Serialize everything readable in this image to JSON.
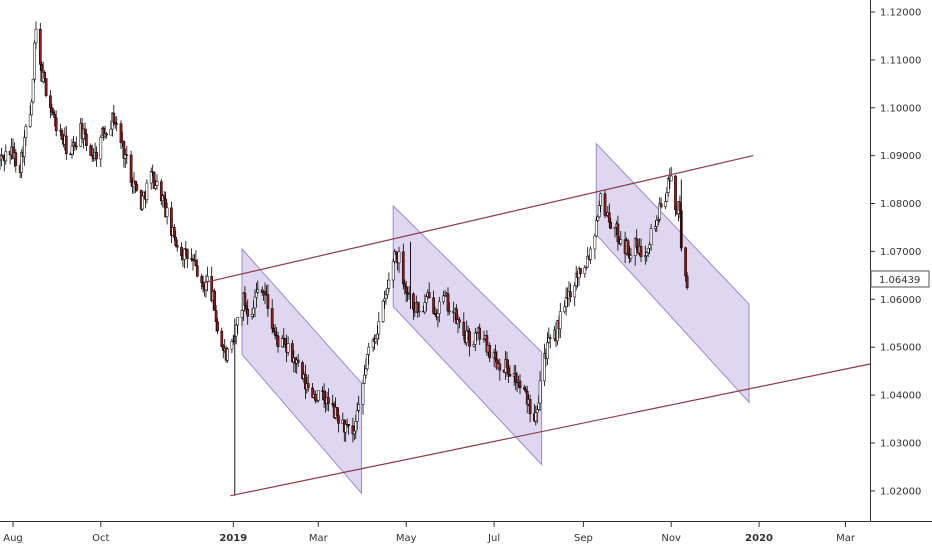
{
  "chart_data": {
    "type": "candlestick",
    "title": "",
    "xlabel": "",
    "ylabel": "",
    "ylim": [
      1.0135,
      1.1225
    ],
    "x_range": [
      "2018-07-23",
      "2020-03-18"
    ],
    "y_ticks": [
      "1.12000",
      "1.11000",
      "1.10000",
      "1.09000",
      "1.08000",
      "1.07000",
      "1.06000",
      "1.05000",
      "1.04000",
      "1.03000",
      "1.02000"
    ],
    "x_ticks": [
      {
        "label": "Aug",
        "date": "2018-08-01",
        "bold": false
      },
      {
        "label": "Oct",
        "date": "2018-10-01",
        "bold": false
      },
      {
        "label": "2019",
        "date": "2019-01-01",
        "bold": true
      },
      {
        "label": "Mar",
        "date": "2019-03-01",
        "bold": false
      },
      {
        "label": "May",
        "date": "2019-05-01",
        "bold": false
      },
      {
        "label": "Jul",
        "date": "2019-07-01",
        "bold": false
      },
      {
        "label": "Sep",
        "date": "2019-09-01",
        "bold": false
      },
      {
        "label": "Nov",
        "date": "2019-11-01",
        "bold": false
      },
      {
        "label": "2020",
        "date": "2020-01-01",
        "bold": true
      },
      {
        "label": "Mar",
        "date": "2020-03-01",
        "bold": false
      }
    ],
    "current_price": {
      "label": "1.06439",
      "value": 1.06439
    },
    "grid": false,
    "colors": {
      "up_candle": "#ffffff",
      "down_candle": "#8b1a1a",
      "wick": "#000000",
      "trendline": "#8b3a4a",
      "channel_fill": "#d8d0ec",
      "channel_stroke": "#9a8ccc"
    },
    "path": [
      [
        "2018-07-23",
        1.089
      ],
      [
        "2018-07-30",
        1.091
      ],
      [
        "2018-08-06",
        1.088
      ],
      [
        "2018-08-10",
        1.095
      ],
      [
        "2018-08-14",
        1.1
      ],
      [
        "2018-08-16",
        1.112
      ],
      [
        "2018-08-17",
        1.116
      ],
      [
        "2018-08-20",
        1.108
      ],
      [
        "2018-08-24",
        1.104
      ],
      [
        "2018-08-30",
        1.097
      ],
      [
        "2018-09-05",
        1.093
      ],
      [
        "2018-09-10",
        1.09
      ],
      [
        "2018-09-17",
        1.096
      ],
      [
        "2018-09-21",
        1.092
      ],
      [
        "2018-09-27",
        1.09
      ],
      [
        "2018-10-03",
        1.095
      ],
      [
        "2018-10-10",
        1.098
      ],
      [
        "2018-10-16",
        1.092
      ],
      [
        "2018-10-22",
        1.086
      ],
      [
        "2018-10-29",
        1.08
      ],
      [
        "2018-11-05",
        1.086
      ],
      [
        "2018-11-12",
        1.082
      ],
      [
        "2018-11-19",
        1.074
      ],
      [
        "2018-11-26",
        1.07
      ],
      [
        "2018-12-03",
        1.068
      ],
      [
        "2018-12-07",
        1.066
      ],
      [
        "2018-12-10",
        1.062
      ],
      [
        "2018-12-14",
        1.064
      ],
      [
        "2018-12-18",
        1.06
      ],
      [
        "2018-12-22",
        1.052
      ],
      [
        "2018-12-27",
        1.048
      ],
      [
        "2019-01-01",
        1.05
      ],
      [
        "2019-01-04",
        1.056
      ],
      [
        "2019-01-08",
        1.06
      ],
      [
        "2019-01-12",
        1.057
      ],
      [
        "2019-01-16",
        1.06
      ],
      [
        "2019-01-20",
        1.064
      ],
      [
        "2019-01-24",
        1.06
      ],
      [
        "2019-01-30",
        1.052
      ],
      [
        "2019-02-06",
        1.05
      ],
      [
        "2019-02-13",
        1.047
      ],
      [
        "2019-02-20",
        1.042
      ],
      [
        "2019-02-27",
        1.04
      ],
      [
        "2019-03-06",
        1.039
      ],
      [
        "2019-03-13",
        1.036
      ],
      [
        "2019-03-20",
        1.033
      ],
      [
        "2019-03-25",
        1.031
      ],
      [
        "2019-03-30",
        1.038
      ],
      [
        "2019-04-04",
        1.048
      ],
      [
        "2019-04-09",
        1.052
      ],
      [
        "2019-04-14",
        1.057
      ],
      [
        "2019-04-18",
        1.062
      ],
      [
        "2019-04-23",
        1.07
      ],
      [
        "2019-04-27",
        1.068
      ],
      [
        "2019-05-01",
        1.062
      ],
      [
        "2019-05-06",
        1.059
      ],
      [
        "2019-05-11",
        1.057
      ],
      [
        "2019-05-16",
        1.06
      ],
      [
        "2019-05-22",
        1.058
      ],
      [
        "2019-05-28",
        1.06
      ],
      [
        "2019-06-03",
        1.057
      ],
      [
        "2019-06-09",
        1.053
      ],
      [
        "2019-06-15",
        1.051
      ],
      [
        "2019-06-21",
        1.053
      ],
      [
        "2019-06-27",
        1.05
      ],
      [
        "2019-07-03",
        1.047
      ],
      [
        "2019-07-10",
        1.046
      ],
      [
        "2019-07-17",
        1.043
      ],
      [
        "2019-07-24",
        1.039
      ],
      [
        "2019-07-29",
        1.036
      ],
      [
        "2019-08-01",
        1.04
      ],
      [
        "2019-08-03",
        1.047
      ],
      [
        "2019-08-07",
        1.05
      ],
      [
        "2019-08-12",
        1.052
      ],
      [
        "2019-08-16",
        1.056
      ],
      [
        "2019-08-20",
        1.059
      ],
      [
        "2019-08-24",
        1.063
      ],
      [
        "2019-08-29",
        1.066
      ],
      [
        "2019-09-03",
        1.068
      ],
      [
        "2019-09-08",
        1.072
      ],
      [
        "2019-09-12",
        1.081
      ],
      [
        "2019-09-16",
        1.079
      ],
      [
        "2019-09-20",
        1.076
      ],
      [
        "2019-09-24",
        1.074
      ],
      [
        "2019-09-28",
        1.072
      ],
      [
        "2019-10-03",
        1.07
      ],
      [
        "2019-10-07",
        1.071
      ],
      [
        "2019-10-12",
        1.069
      ],
      [
        "2019-10-17",
        1.073
      ],
      [
        "2019-10-21",
        1.076
      ],
      [
        "2019-10-25",
        1.079
      ],
      [
        "2019-10-29",
        1.083
      ],
      [
        "2019-11-01",
        1.085
      ],
      [
        "2019-11-04",
        1.08
      ],
      [
        "2019-11-07",
        1.078
      ],
      [
        "2019-11-08",
        1.07
      ],
      [
        "2019-11-10",
        1.066
      ],
      [
        "2019-11-12",
        1.064
      ]
    ],
    "spikes": [
      {
        "date": "2019-01-02",
        "low": 1.019,
        "high": 1.056
      },
      {
        "date": "2019-05-04",
        "low": 1.058,
        "high": 1.072
      },
      {
        "date": "2019-11-08",
        "low": 1.07,
        "high": 1.085
      }
    ],
    "trendlines": [
      {
        "p1": [
          "2018-12-12",
          1.0635
        ],
        "p2": [
          "2019-12-28",
          1.09
        ]
      },
      {
        "p1": [
          "2018-12-30",
          1.019
        ],
        "p2": [
          "2020-03-18",
          1.0465
        ]
      }
    ],
    "channels": [
      {
        "a": [
          "2019-01-07",
          1.0705
        ],
        "b": [
          "2019-03-31",
          1.0425
        ],
        "c": [
          "2019-03-31",
          1.0195
        ],
        "d": [
          "2019-01-07",
          1.0485
        ]
      },
      {
        "a": [
          "2019-04-22",
          1.0795
        ],
        "b": [
          "2019-08-03",
          1.049
        ],
        "c": [
          "2019-08-03",
          1.0255
        ],
        "d": [
          "2019-04-22",
          1.0585
        ]
      },
      {
        "a": [
          "2019-09-10",
          1.0925
        ],
        "b": [
          "2019-12-25",
          1.059
        ],
        "c": [
          "2019-12-25",
          1.0385
        ],
        "d": [
          "2019-09-10",
          1.0735
        ]
      }
    ]
  }
}
